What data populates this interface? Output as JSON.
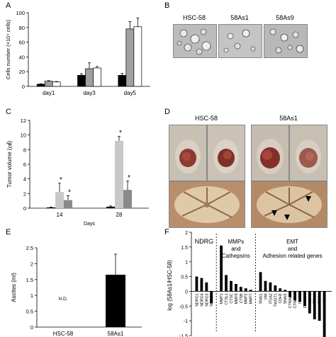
{
  "panels": {
    "A": {
      "label": "A",
      "chart_data": {
        "type": "bar",
        "categories": [
          "day1",
          "day3",
          "day5"
        ],
        "series": [
          {
            "values": [
              3,
              15,
              15
            ],
            "errors": [
              0.5,
              2,
              2.5
            ],
            "color": "#000000"
          },
          {
            "values": [
              7,
              24,
              78
            ],
            "errors": [
              0.8,
              8,
              10
            ],
            "color": "#a0a0a0"
          },
          {
            "values": [
              6,
              25,
              81
            ],
            "errors": [
              0.6,
              2,
              12
            ],
            "color": "#ffffff"
          }
        ],
        "ylabel": "Cells number (×10⁴ cells)",
        "ylim": [
          0,
          100
        ],
        "yticks": [
          "0",
          "20",
          "40",
          "60",
          "80",
          "100"
        ]
      }
    },
    "B": {
      "label": "B",
      "titles": [
        "HSC-58",
        "58As1",
        "58As9"
      ]
    },
    "C": {
      "label": "C",
      "chart_data": {
        "type": "bar",
        "categories": [
          "14",
          "28"
        ],
        "series": [
          {
            "values": [
              0.1,
              0.2
            ],
            "errors": [
              0.05,
              0.1
            ],
            "color": "#000000"
          },
          {
            "values": [
              2.2,
              9.2
            ],
            "errors": [
              1.2,
              0.6
            ],
            "color": "#c8c8c8"
          },
          {
            "values": [
              1.1,
              2.5
            ],
            "errors": [
              0.6,
              1.2
            ],
            "color": "#8a8a8a"
          }
        ],
        "significance": [
          {
            "category": 0,
            "series": 1,
            "text": "*"
          },
          {
            "category": 0,
            "series": 2,
            "text": "*"
          },
          {
            "category": 1,
            "series": 1,
            "text": "*"
          },
          {
            "category": 1,
            "series": 2,
            "text": "*"
          }
        ],
        "xlabel": "Days",
        "ylabel": "Tumor volume (㎠)",
        "ylim": [
          0,
          12
        ],
        "yticks": [
          "0",
          "2",
          "4",
          "6",
          "8",
          "10",
          "12"
        ]
      }
    },
    "D": {
      "label": "D",
      "titles": [
        "HSC-58",
        "58As1"
      ]
    },
    "E": {
      "label": "E",
      "chart_data": {
        "type": "bar",
        "categories": [
          "HSC-58",
          "58As1"
        ],
        "values": [
          0,
          1.65
        ],
        "errors": [
          0,
          0.65
        ],
        "annotation": "N.D.",
        "ylabel": "Ascites (ml)",
        "ylim": [
          0,
          2.5
        ],
        "yticks": [
          "0",
          "0.5",
          "1",
          "1.5",
          "2",
          "2.5"
        ]
      }
    },
    "F": {
      "label": "F",
      "chart_data": {
        "type": "bar",
        "ylabel": "log  (58As1/HSC-58)",
        "ylim": [
          -1.5,
          2
        ],
        "yticks": [
          "2",
          "1.5",
          "1",
          "0.5",
          "0",
          "-0.5",
          "-1",
          "-1.5"
        ],
        "groups": [
          {
            "title": [
              "NDRG"
            ],
            "categories": [
              "NDRG1",
              "NDRG4",
              "NDRG3",
              "NDRG2"
            ],
            "values": [
              0.5,
              0.45,
              0.3,
              -0.4
            ]
          },
          {
            "title": [
              "MMPs",
              "and",
              "Cathepsins"
            ],
            "categories": [
              "MMP1",
              "CTSL1",
              "CTSC",
              "MMP9",
              "CTSB",
              "MMP2",
              "MMP7"
            ],
            "values": [
              1.55,
              0.55,
              0.35,
              0.25,
              0.15,
              0.1,
              0.05
            ]
          },
          {
            "title": [
              "EMT",
              "and",
              "Adhesion related genes"
            ],
            "categories": [
              "SNAI1",
              "VIM",
              "ITGA2",
              "TWIST1",
              "CDH2",
              "SNAI2",
              "CTNNA1",
              "CTNND1",
              "ITGB6",
              "CTNNB1",
              "CDH1",
              "ITGA3",
              "ITGB4",
              "CDH3"
            ],
            "values": [
              0.65,
              0.35,
              0.3,
              0.2,
              0.1,
              0.05,
              -0.2,
              -0.3,
              -0.35,
              -0.5,
              -0.75,
              -0.95,
              -1.0,
              -1.55
            ]
          }
        ]
      }
    }
  }
}
